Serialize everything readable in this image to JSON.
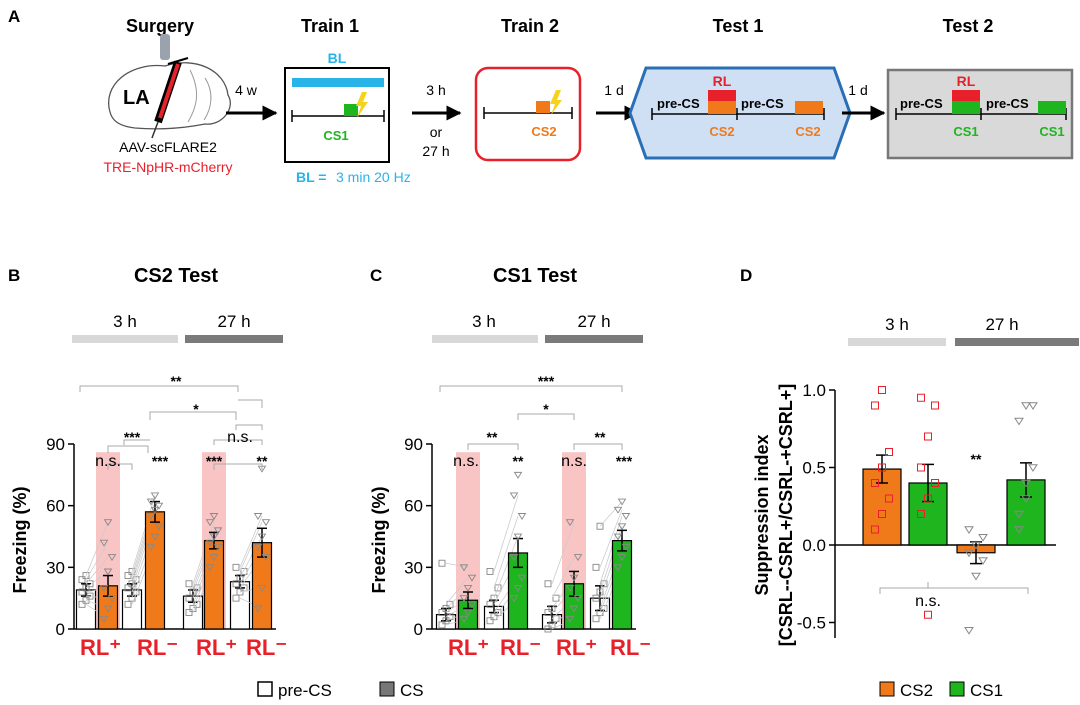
{
  "colors": {
    "orange": "#f07a1a",
    "green": "#1fb51f",
    "blue": "#28b4e8",
    "red": "#e8202a",
    "pink": "#f8c4c4",
    "lightgray": "#d8d8d8",
    "darkgray": "#7a7a7a",
    "panelBlue": "#2a6fb5"
  },
  "panel_A": {
    "label": "A",
    "stages": [
      {
        "title": "Surgery"
      },
      {
        "title": "Train 1"
      },
      {
        "title": "Train 2"
      },
      {
        "title": "Test 1"
      },
      {
        "title": "Test 2"
      }
    ],
    "brain_label": "LA",
    "virus_1": "AAV-scFLARE2",
    "virus_2": "TRE-NpHR-mCherry",
    "interval_1": "4 w",
    "interval_2a": "3 h",
    "interval_2b": "or",
    "interval_2c": "27 h",
    "interval_3": "1 d",
    "interval_4": "1 d",
    "bl_label": "BL",
    "bl_eq_a": "BL =",
    "bl_eq_b": "3 min 20 Hz",
    "cs1": "CS1",
    "cs2": "CS2",
    "rl": "RL",
    "pre_cs": "pre-CS"
  },
  "chart_data": [
    {
      "id": "B",
      "type": "bar",
      "label": "B",
      "title": "CS2 Test",
      "ylabel": "Freezing (%)",
      "ylim": [
        0,
        90
      ],
      "yticks": [
        "0",
        "30",
        "60",
        "90"
      ],
      "time_groups": [
        "3 h",
        "27 h"
      ],
      "condition_labels": [
        "RL⁺",
        "RL⁻",
        "RL⁺",
        "RL⁻"
      ],
      "categories": [
        "3h pre-CS RL+",
        "3h CS RL+",
        "3h pre-CS RL-",
        "3h CS RL-",
        "27h pre-CS RL+",
        "27h CS RL+",
        "27h pre-CS RL-",
        "27h CS RL-"
      ],
      "values": [
        19,
        21,
        19,
        57,
        16,
        43,
        23,
        42
      ],
      "errors": [
        3,
        5,
        3,
        5,
        3,
        4,
        3,
        7
      ],
      "points": [
        [
          12,
          14,
          16,
          18,
          20,
          22,
          24,
          26
        ],
        [
          5,
          10,
          15,
          20,
          28,
          35,
          42,
          52
        ],
        [
          12,
          15,
          18,
          20,
          22,
          24,
          26,
          28
        ],
        [
          40,
          45,
          50,
          55,
          58,
          60,
          62,
          65
        ],
        [
          8,
          10,
          12,
          15,
          18,
          20,
          22
        ],
        [
          30,
          35,
          40,
          42,
          45,
          48,
          52,
          55
        ],
        [
          15,
          18,
          20,
          22,
          25,
          28,
          30
        ],
        [
          10,
          20,
          35,
          40,
          45,
          52,
          55,
          78
        ]
      ],
      "significance": [
        "n.s.",
        "***",
        "***",
        "***",
        "**",
        "**",
        "*",
        "n.s.",
        "***",
        "**"
      ]
    },
    {
      "id": "C",
      "type": "bar",
      "label": "C",
      "title": "CS1 Test",
      "ylabel": "Freezing (%)",
      "ylim": [
        0,
        90
      ],
      "yticks": [
        "0",
        "30",
        "60",
        "90"
      ],
      "time_groups": [
        "3 h",
        "27 h"
      ],
      "condition_labels": [
        "RL⁺",
        "RL⁻",
        "RL⁺",
        "RL⁻"
      ],
      "categories": [
        "3h pre-CS RL+",
        "3h CS RL+",
        "3h pre-CS RL-",
        "3h CS RL-",
        "27h pre-CS RL+",
        "27h CS RL+",
        "27h pre-CS RL-",
        "27h CS RL-"
      ],
      "values": [
        7,
        14,
        11,
        37,
        7,
        22,
        15,
        43
      ],
      "errors": [
        3,
        4,
        3,
        7,
        4,
        6,
        6,
        5
      ],
      "points": [
        [
          2,
          4,
          6,
          8,
          10,
          12,
          32
        ],
        [
          5,
          8,
          12,
          15,
          20,
          25,
          30
        ],
        [
          4,
          6,
          8,
          12,
          15,
          20,
          28
        ],
        [
          15,
          20,
          25,
          35,
          45,
          55,
          65,
          75
        ],
        [
          0,
          2,
          5,
          8,
          10,
          15,
          22
        ],
        [
          5,
          10,
          15,
          20,
          25,
          35,
          52
        ],
        [
          5,
          8,
          10,
          15,
          18,
          22,
          30,
          50
        ],
        [
          30,
          35,
          40,
          45,
          50,
          55,
          58,
          62
        ]
      ],
      "significance": [
        "n.s.",
        "**",
        "**",
        "n.s.",
        "***",
        "**",
        "*",
        "***"
      ]
    },
    {
      "id": "D",
      "type": "bar",
      "label": "D",
      "title": "",
      "ylabel_line1": "Suppression index",
      "ylabel_line2": "[CSRL--CSRL+/CSRL-+CSRL+]",
      "ylim": [
        -0.6,
        1.0
      ],
      "yticks": [
        "-0.5",
        "0.0",
        "0.5",
        "1.0"
      ],
      "time_groups": [
        "3 h",
        "27 h"
      ],
      "categories": [
        "3h CS2",
        "3h CS1",
        "27h CS2",
        "27h CS1"
      ],
      "values": [
        0.49,
        0.4,
        -0.05,
        0.42
      ],
      "errors": [
        0.09,
        0.12,
        0.07,
        0.11
      ],
      "points": [
        [
          0.1,
          0.2,
          0.3,
          0.4,
          0.5,
          0.6,
          0.9,
          1.0
        ],
        [
          0.2,
          0.3,
          0.4,
          0.5,
          0.7,
          0.9,
          0.95,
          -0.45
        ],
        [
          -0.55,
          -0.2,
          -0.1,
          -0.05,
          0.0,
          0.05,
          0.1
        ],
        [
          0.1,
          0.3,
          0.5,
          0.8,
          0.9,
          0.9,
          0.2,
          0.4
        ]
      ],
      "significance": [
        "**",
        "n.s."
      ],
      "legend": [
        {
          "name": "CS2"
        },
        {
          "name": "CS1"
        }
      ]
    }
  ],
  "legend_bc": [
    {
      "name": "pre-CS"
    },
    {
      "name": "CS"
    }
  ]
}
